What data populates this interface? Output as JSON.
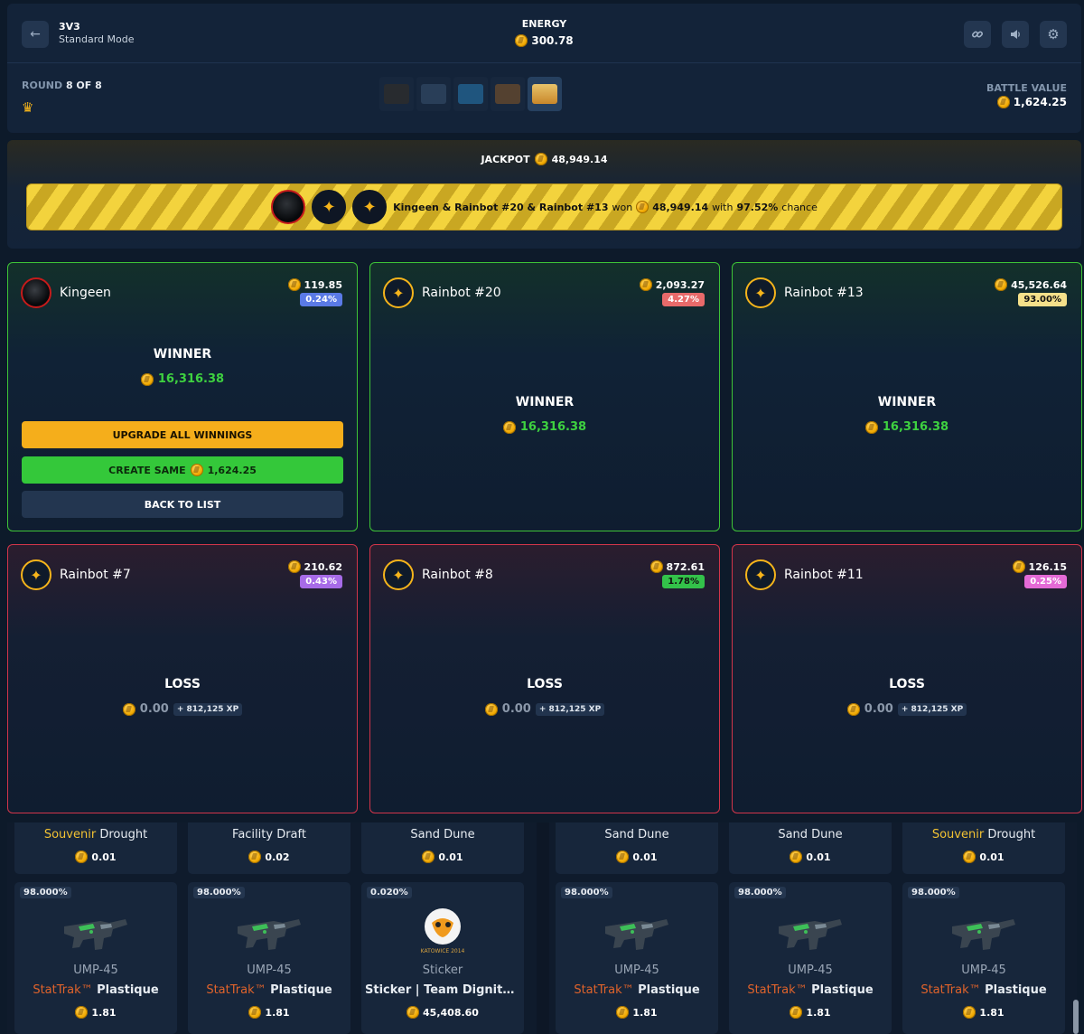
{
  "header": {
    "back_icon": "arrow-left-icon",
    "mode_title": "3V3",
    "mode_sub": "Standard Mode",
    "energy_label": "ENERGY",
    "energy_value": "300.78",
    "link_icon": "link-icon",
    "sound_icon": "speaker-icon",
    "settings_icon": "gear-icon",
    "round_label": "ROUND",
    "round_value": "8 OF 8",
    "battle_value_label": "BATTLE VALUE",
    "battle_value": "1,624.25"
  },
  "jackpot": {
    "label": "JACKPOT",
    "amount": "48,949.14",
    "winners": "Kingeen & Rainbot #20 & Rainbot #13",
    "won_word": "won",
    "won_amount": "48,949.14",
    "with_word": "with",
    "chance": "97.52%",
    "chance_word": "chance"
  },
  "players": [
    {
      "name": "Kingeen",
      "value": "119.85",
      "percent": "0.24%",
      "percent_color": "#5a7ae6",
      "result": "WINNER",
      "amount": "16,316.38"
    },
    {
      "name": "Rainbot #20",
      "value": "2,093.27",
      "percent": "4.27%",
      "percent_color": "#e86a6a",
      "result": "WINNER",
      "amount": "16,316.38"
    },
    {
      "name": "Rainbot #13",
      "value": "45,526.64",
      "percent": "93.00%",
      "percent_color": "#f5e08a",
      "result": "WINNER",
      "amount": "16,316.38"
    },
    {
      "name": "Rainbot #7",
      "value": "210.62",
      "percent": "0.43%",
      "percent_color": "#a76be8",
      "result": "LOSS",
      "amount": "0.00",
      "xp": "+ 812,125 XP"
    },
    {
      "name": "Rainbot #8",
      "value": "872.61",
      "percent": "1.78%",
      "percent_color": "#33c24a",
      "result": "LOSS",
      "amount": "0.00",
      "xp": "+ 812,125 XP"
    },
    {
      "name": "Rainbot #11",
      "value": "126.15",
      "percent": "0.25%",
      "percent_color": "#e46ad6",
      "result": "LOSS",
      "amount": "0.00",
      "xp": "+ 812,125 XP"
    }
  ],
  "actions": {
    "upgrade": "UPGRADE ALL WINNINGS",
    "create_same": "CREATE SAME",
    "create_same_value": "1,624.25",
    "back": "BACK TO LIST"
  },
  "top_items": [
    {
      "prefix": "Souvenir",
      "name": "Drought",
      "value": "0.01"
    },
    {
      "prefix": "",
      "name": "Facility Draft",
      "value": "0.02"
    },
    {
      "prefix": "",
      "name": "Sand Dune",
      "value": "0.01"
    },
    {
      "prefix": "",
      "name": "Sand Dune",
      "value": "0.01"
    },
    {
      "prefix": "",
      "name": "Sand Dune",
      "value": "0.01"
    },
    {
      "prefix": "Souvenir",
      "name": "Drought",
      "value": "0.01"
    }
  ],
  "items": [
    {
      "percent": "98.000%",
      "type": "UMP-45",
      "stattrak": "StatTrak™",
      "name": "Plastique",
      "value": "1.81",
      "icon": "smg-icon"
    },
    {
      "percent": "98.000%",
      "type": "UMP-45",
      "stattrak": "StatTrak™",
      "name": "Plastique",
      "value": "1.81",
      "icon": "smg-icon"
    },
    {
      "percent": "0.020%",
      "type": "Sticker",
      "stattrak": "",
      "name": "Sticker | Team Dignitas (H...",
      "value": "45,408.60",
      "icon": "sticker-icon",
      "sticker_caption": "KATOWICE 2014"
    },
    {
      "percent": "98.000%",
      "type": "UMP-45",
      "stattrak": "StatTrak™",
      "name": "Plastique",
      "value": "1.81",
      "icon": "smg-icon"
    },
    {
      "percent": "98.000%",
      "type": "UMP-45",
      "stattrak": "StatTrak™",
      "name": "Plastique",
      "value": "1.81",
      "icon": "smg-icon"
    },
    {
      "percent": "98.000%",
      "type": "UMP-45",
      "stattrak": "StatTrak™",
      "name": "Plastique",
      "value": "1.81",
      "icon": "smg-icon"
    }
  ]
}
